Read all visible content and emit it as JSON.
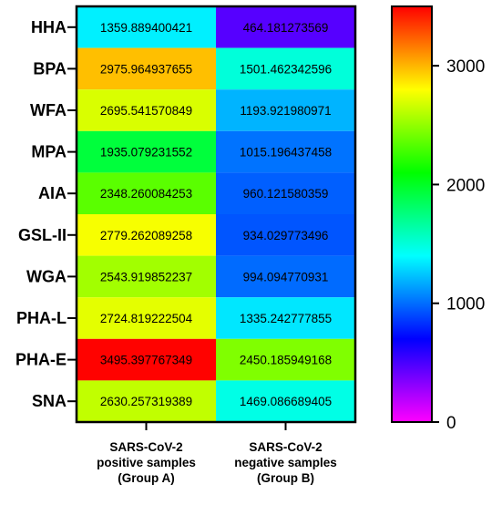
{
  "chart_data": {
    "type": "heatmap",
    "rows": [
      "HHA",
      "BPA",
      "WFA",
      "MPA",
      "AIA",
      "GSL-II",
      "WGA",
      "PHA-L",
      "PHA-E",
      "SNA"
    ],
    "columns": [
      [
        "SARS-CoV-2",
        "positive samples",
        "(Group A)"
      ],
      [
        "SARS-CoV-2",
        "negative samples",
        "(Group B)"
      ]
    ],
    "values": [
      [
        "1359.889400421",
        "464.181273569"
      ],
      [
        "2975.964937655",
        "1501.462342596"
      ],
      [
        "2695.541570849",
        "1193.921980971"
      ],
      [
        "1935.079231552",
        "1015.196437458"
      ],
      [
        "2348.260084253",
        "960.121580359"
      ],
      [
        "2779.262089258",
        "934.029773496"
      ],
      [
        "2543.919852237",
        "994.094770931"
      ],
      [
        "2724.819222504",
        "1335.242777855"
      ],
      [
        "3495.397767349",
        "2450.185949168"
      ],
      [
        "2630.257319389",
        "1469.086689405"
      ]
    ],
    "colorbar": {
      "range": [
        0,
        3500
      ],
      "ticks": [
        0,
        1000,
        2000,
        3000
      ],
      "tick_labels": [
        "0",
        "1000",
        "2000",
        "3000"
      ],
      "colormap": "rainbow"
    }
  }
}
